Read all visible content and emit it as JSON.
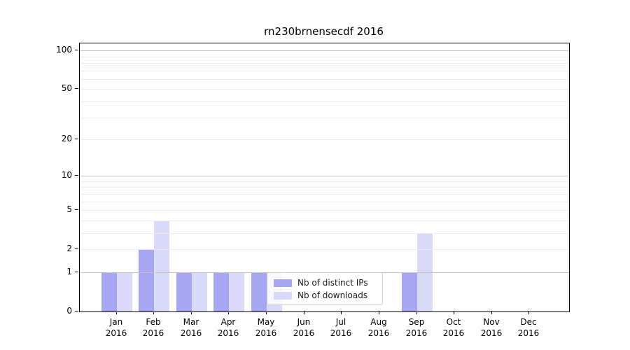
{
  "title": "rn230brnensecdf 2016",
  "chart_data": {
    "type": "bar",
    "title": "rn230brnensecdf 2016",
    "categories": [
      "Jan",
      "Feb",
      "Mar",
      "Apr",
      "May",
      "Jun",
      "Jul",
      "Aug",
      "Sep",
      "Oct",
      "Nov",
      "Dec"
    ],
    "year_label": "2016",
    "series": [
      {
        "name": "Nb of distinct IPs",
        "color": "#a6a6f2",
        "values": [
          1,
          2,
          1,
          1,
          1,
          0,
          0,
          0,
          1,
          0,
          0,
          0
        ]
      },
      {
        "name": "Nb of downloads",
        "color": "#d9d9f9",
        "values": [
          1,
          4,
          1,
          1,
          1,
          0,
          0,
          0,
          3,
          0,
          0,
          0
        ]
      }
    ],
    "yscale": "log1p",
    "ylim": [
      0,
      113
    ],
    "yticks": [
      0,
      1,
      2,
      5,
      10,
      20,
      50,
      100
    ],
    "grid": "both",
    "grid_major_values": [
      1,
      10,
      100
    ],
    "grid_minor_values": [
      2,
      3,
      4,
      5,
      6,
      7,
      8,
      9,
      20,
      30,
      40,
      50,
      60,
      70,
      80,
      90
    ],
    "legend_position": "lower center",
    "colors": {
      "grid_major": "#c2c2c2",
      "grid_minor": "#ececec",
      "axis": "#000000",
      "tick_text": "#000000",
      "legend_border": "#cccccc",
      "background": "#ffffff"
    }
  }
}
